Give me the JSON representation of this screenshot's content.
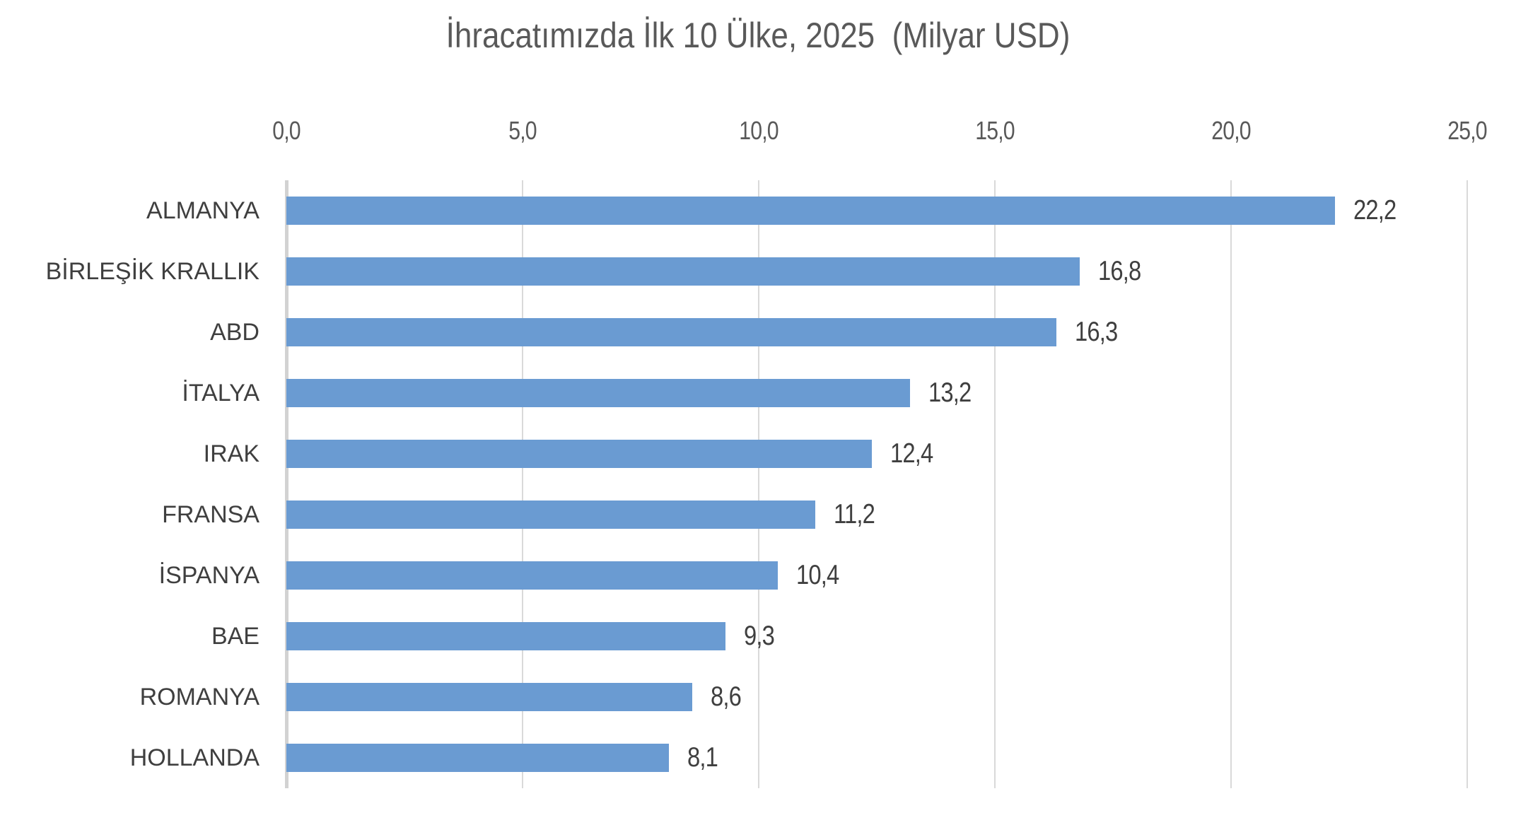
{
  "chart_data": {
    "type": "bar",
    "orientation": "horizontal",
    "title": "İhracatımızda İlk 10 Ülke, 2025  (Milyar USD)",
    "categories": [
      "ALMANYA",
      "BİRLEŞİK KRALLIK",
      "ABD",
      "İTALYA",
      "IRAK",
      "FRANSA",
      "İSPANYA",
      "BAE",
      "ROMANYA",
      "HOLLANDA"
    ],
    "values": [
      22.2,
      16.8,
      16.3,
      13.2,
      12.4,
      11.2,
      10.4,
      9.3,
      8.6,
      8.1
    ],
    "value_labels": [
      "22,2",
      "16,8",
      "16,3",
      "13,2",
      "12,4",
      "11,2",
      "10,4",
      "9,3",
      "8,6",
      "8,1"
    ],
    "x_ticks": [
      "0,0",
      "5,0",
      "10,0",
      "15,0",
      "20,0",
      "25,0"
    ],
    "x_tick_values": [
      0,
      5,
      10,
      15,
      20,
      25
    ],
    "xlim": [
      0,
      25
    ],
    "xlabel": "",
    "ylabel": "",
    "grid": "vertical-gridlines-on",
    "legend": "none",
    "data_labels": "outside-end",
    "colors": {
      "bar": "#6A9BD2",
      "title_text": "#595959",
      "tick_text": "#595959",
      "label_text": "#3F3F3F",
      "gridline": "#D9D9D9",
      "axis_line": "#D2D2D2",
      "background": "#FFFFFF"
    }
  }
}
